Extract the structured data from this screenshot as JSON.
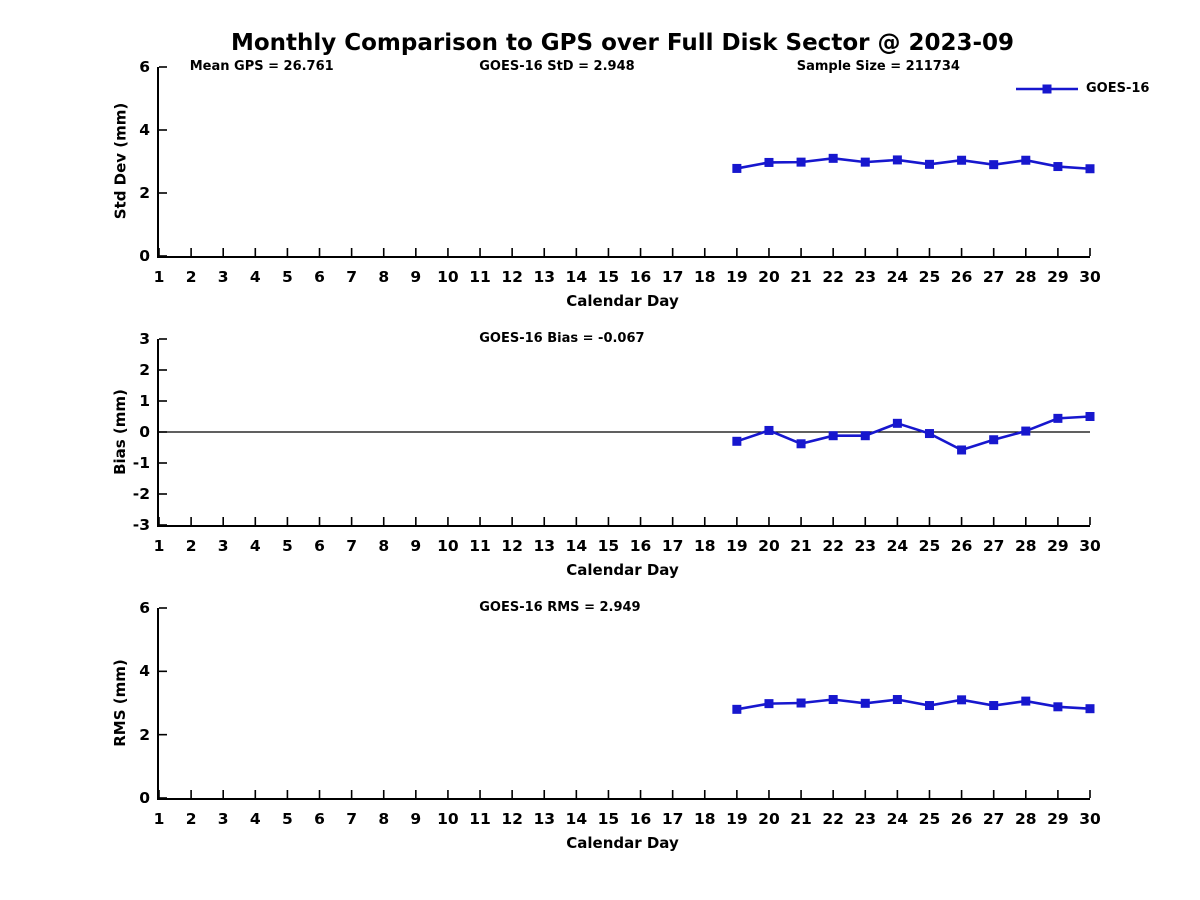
{
  "title": "Monthly Comparison to GPS over Full Disk Sector @ 2023-09",
  "xlabel": "Calendar Day",
  "x_ticks": [
    1,
    2,
    3,
    4,
    5,
    6,
    7,
    8,
    9,
    10,
    11,
    12,
    13,
    14,
    15,
    16,
    17,
    18,
    19,
    20,
    21,
    22,
    23,
    24,
    25,
    26,
    27,
    28,
    29,
    30
  ],
  "legend": {
    "label": "GOES-16",
    "position": "top-right"
  },
  "colors": {
    "line": "#1717CE",
    "axis": "#000000",
    "background": "#FFFFFF",
    "text": "#000000"
  },
  "chart_data": [
    {
      "type": "line",
      "ylabel": "Std Dev (mm)",
      "xlabel": "Calendar Day",
      "xlim": [
        1,
        30
      ],
      "ylim": [
        0,
        6
      ],
      "y_ticks": [
        0,
        2,
        4,
        6
      ],
      "grid": false,
      "annotations": [
        {
          "text": "Mean GPS = 26.761"
        },
        {
          "text": "GOES-16 StD = 2.948"
        },
        {
          "text": "Sample Size = 211734"
        }
      ],
      "series": [
        {
          "name": "GOES-16",
          "x": [
            19,
            20,
            21,
            22,
            23,
            24,
            25,
            26,
            27,
            28,
            29,
            30
          ],
          "y": [
            2.78,
            2.97,
            2.98,
            3.1,
            2.98,
            3.05,
            2.91,
            3.04,
            2.9,
            3.04,
            2.84,
            2.77
          ]
        }
      ]
    },
    {
      "type": "line",
      "ylabel": "Bias (mm)",
      "xlabel": "Calendar Day",
      "xlim": [
        1,
        30
      ],
      "ylim": [
        -3,
        3
      ],
      "y_ticks": [
        -3,
        -2,
        -1,
        0,
        1,
        2,
        3
      ],
      "zero_line": true,
      "grid": false,
      "annotations": [
        {
          "text": "GOES-16 Bias = -0.067"
        }
      ],
      "series": [
        {
          "name": "GOES-16",
          "x": [
            19,
            20,
            21,
            22,
            23,
            24,
            25,
            26,
            27,
            28,
            29,
            30
          ],
          "y": [
            -0.3,
            0.05,
            -0.38,
            -0.12,
            -0.12,
            0.28,
            -0.05,
            -0.58,
            -0.25,
            0.03,
            0.44,
            0.5
          ]
        }
      ]
    },
    {
      "type": "line",
      "ylabel": "RMS (mm)",
      "xlabel": "Calendar Day",
      "xlim": [
        1,
        30
      ],
      "ylim": [
        0,
        6
      ],
      "y_ticks": [
        0,
        2,
        4,
        6
      ],
      "grid": false,
      "annotations": [
        {
          "text": "GOES-16 RMS = 2.949"
        }
      ],
      "series": [
        {
          "name": "GOES-16",
          "x": [
            19,
            20,
            21,
            22,
            23,
            24,
            25,
            26,
            27,
            28,
            29,
            30
          ],
          "y": [
            2.8,
            2.98,
            3.0,
            3.11,
            2.99,
            3.11,
            2.92,
            3.1,
            2.92,
            3.06,
            2.88,
            2.82
          ]
        }
      ]
    }
  ]
}
